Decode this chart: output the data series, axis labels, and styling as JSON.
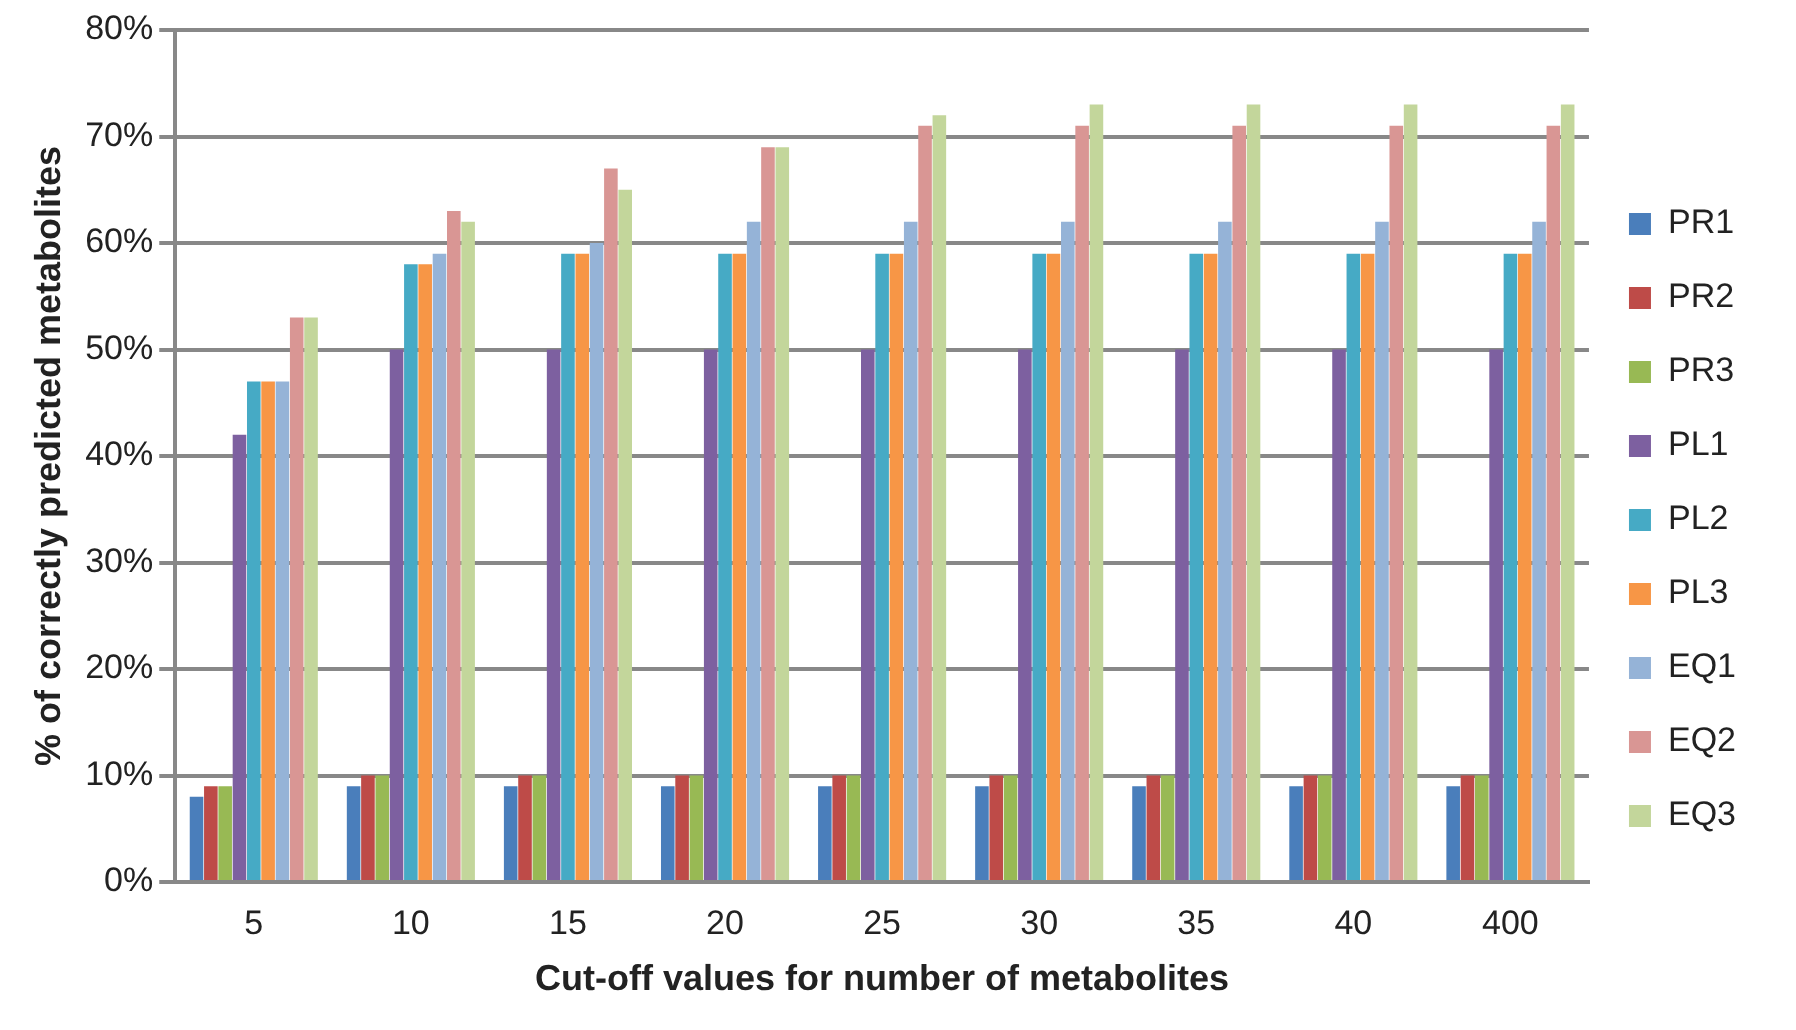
{
  "chart_data": {
    "type": "bar",
    "xlabel": "Cut-off values for number of metabolites",
    "ylabel": "% of correctly predicted metabolites",
    "categories": [
      "5",
      "10",
      "15",
      "20",
      "25",
      "30",
      "35",
      "40",
      "400"
    ],
    "series": [
      {
        "name": "PR1",
        "color": "#4a7ebb",
        "values": [
          8,
          9,
          9,
          9,
          9,
          9,
          9,
          9,
          9
        ]
      },
      {
        "name": "PR2",
        "color": "#be4b48",
        "values": [
          9,
          10,
          10,
          10,
          10,
          10,
          10,
          10,
          10
        ]
      },
      {
        "name": "PR3",
        "color": "#98b954",
        "values": [
          9,
          10,
          10,
          10,
          10,
          10,
          10,
          10,
          10
        ]
      },
      {
        "name": "PL1",
        "color": "#7d60a0",
        "values": [
          42,
          50,
          50,
          50,
          50,
          50,
          50,
          50,
          50
        ]
      },
      {
        "name": "PL2",
        "color": "#46aac5",
        "values": [
          47,
          58,
          59,
          59,
          59,
          59,
          59,
          59,
          59
        ]
      },
      {
        "name": "PL3",
        "color": "#f79646",
        "values": [
          47,
          58,
          59,
          59,
          59,
          59,
          59,
          59,
          59
        ]
      },
      {
        "name": "EQ1",
        "color": "#95b3d7",
        "values": [
          47,
          59,
          60,
          62,
          62,
          62,
          62,
          62,
          62
        ]
      },
      {
        "name": "EQ2",
        "color": "#d99694",
        "values": [
          53,
          63,
          67,
          69,
          71,
          71,
          71,
          71,
          71
        ]
      },
      {
        "name": "EQ3",
        "color": "#c3d69b",
        "values": [
          53,
          62,
          65,
          69,
          72,
          73,
          73,
          73,
          73
        ]
      }
    ],
    "ylim": [
      0,
      80
    ],
    "yticks": [
      {
        "value": 0,
        "label": "0%"
      },
      {
        "value": 10,
        "label": "10%"
      },
      {
        "value": 20,
        "label": "20%"
      },
      {
        "value": 30,
        "label": "30%"
      },
      {
        "value": 40,
        "label": "40%"
      },
      {
        "value": 50,
        "label": "50%"
      },
      {
        "value": 60,
        "label": "60%"
      },
      {
        "value": 70,
        "label": "70%"
      },
      {
        "value": 80,
        "label": "80%"
      }
    ],
    "grid": "y",
    "legend": "right"
  }
}
